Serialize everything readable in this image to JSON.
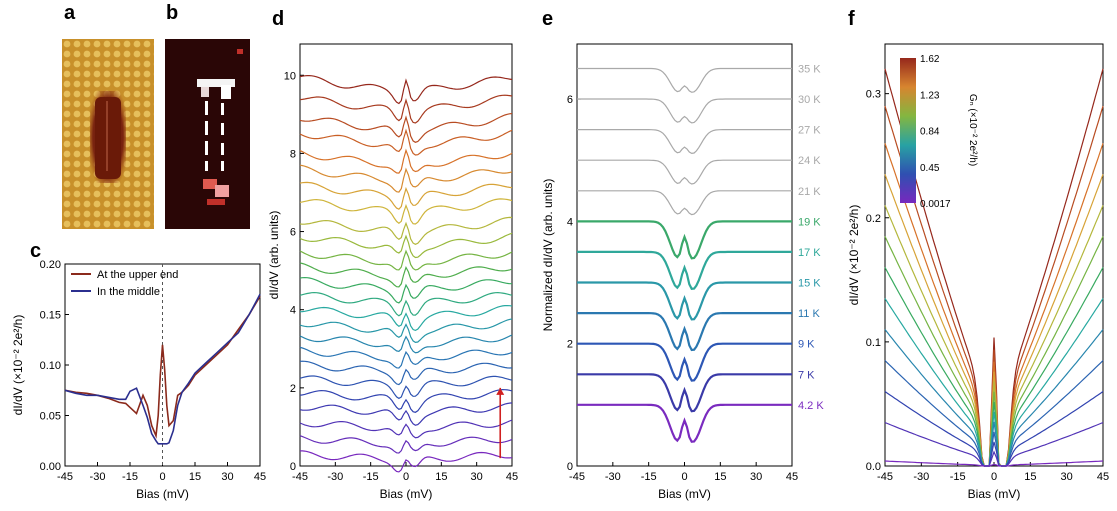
{
  "panel_letters": {
    "a": "a",
    "b": "b",
    "c": "c",
    "d": "d",
    "e": "e",
    "f": "f"
  },
  "colors": {
    "brown": "#8b2a1c",
    "navy": "#2b2f8f",
    "grey": "#a9a9a9",
    "afm_gold": "#c8902a",
    "afm_dark": "#6a1a08",
    "map_dark": "#2a0606"
  },
  "chart_data": [
    {
      "id": "c",
      "type": "line",
      "xlabel": "Bias (mV)",
      "ylabel": "dI/dV (×10⁻² 2e²/h)",
      "xlim": [
        -45,
        45
      ],
      "ylim": [
        0,
        0.2
      ],
      "xticks": [
        -45,
        -30,
        -15,
        0,
        15,
        30,
        45
      ],
      "xtick_labels": [
        "-45",
        "-30",
        "-15",
        "0",
        "15",
        "30",
        "45"
      ],
      "yticks": [
        0,
        0.05,
        0.1,
        0.15,
        0.2
      ],
      "ytick_labels": [
        "0.00",
        "0.05",
        "0.10",
        "0.15",
        "0.20"
      ],
      "legend_position": "top-left",
      "vline": 0,
      "series": [
        {
          "name": "At the upper end",
          "color": "#8b2a1c",
          "x": [
            -45,
            -40,
            -35,
            -30,
            -25,
            -20,
            -17,
            -15,
            -12,
            -9,
            -7,
            -5,
            -3,
            -2,
            -1,
            0,
            1,
            2,
            3,
            5,
            7,
            9,
            12,
            15,
            20,
            25,
            30,
            35,
            40,
            45
          ],
          "y": [
            0.075,
            0.073,
            0.072,
            0.07,
            0.067,
            0.063,
            0.062,
            0.058,
            0.052,
            0.07,
            0.06,
            0.04,
            0.03,
            0.05,
            0.09,
            0.12,
            0.095,
            0.06,
            0.04,
            0.045,
            0.07,
            0.073,
            0.08,
            0.09,
            0.1,
            0.11,
            0.12,
            0.135,
            0.15,
            0.168
          ]
        },
        {
          "name": "In the middle",
          "color": "#2b2f8f",
          "x": [
            -45,
            -40,
            -35,
            -30,
            -25,
            -20,
            -17,
            -15,
            -12,
            -9,
            -7,
            -5,
            -3,
            -2,
            -1,
            0,
            1,
            2,
            3,
            5,
            7,
            9,
            12,
            15,
            20,
            25,
            30,
            35,
            40,
            45
          ],
          "y": [
            0.075,
            0.072,
            0.07,
            0.07,
            0.068,
            0.066,
            0.066,
            0.074,
            0.077,
            0.06,
            0.048,
            0.032,
            0.025,
            0.022,
            0.022,
            0.022,
            0.022,
            0.022,
            0.023,
            0.035,
            0.06,
            0.073,
            0.082,
            0.092,
            0.102,
            0.112,
            0.122,
            0.132,
            0.15,
            0.17
          ]
        }
      ]
    },
    {
      "id": "d",
      "type": "line",
      "xlabel": "Bias (mV)",
      "ylabel": "dI/dV (arb. units)",
      "xlim": [
        -45,
        45
      ],
      "ylim": [
        0,
        10.8
      ],
      "xticks": [
        -45,
        -30,
        -15,
        0,
        15,
        30,
        45
      ],
      "xtick_labels": [
        "-45",
        "-30",
        "-15",
        "0",
        "15",
        "30",
        "45"
      ],
      "yticks": [
        0,
        2,
        4,
        6,
        8,
        10
      ],
      "ytick_labels": [
        "0",
        "2",
        "4",
        "6",
        "8",
        "10"
      ],
      "arrow_x": 40,
      "arrow_y": [
        0.2,
        2.0
      ],
      "stacked_offsets": [
        0.15,
        0.55,
        0.95,
        1.35,
        1.7,
        2.05,
        2.4,
        2.75,
        3.1,
        3.45,
        3.8,
        4.15,
        4.5,
        4.85,
        5.2,
        5.6,
        6.0,
        6.5,
        6.9,
        7.3,
        7.7,
        8.2,
        8.6,
        9.1,
        9.6
      ]
    },
    {
      "id": "e",
      "type": "line",
      "xlabel": "Bias (mV)",
      "ylabel": "Normalized dI/dV (arb. units)",
      "xlim": [
        -45,
        45
      ],
      "ylim": [
        0,
        6.9
      ],
      "xticks": [
        -45,
        -30,
        -15,
        0,
        15,
        30,
        45
      ],
      "xtick_labels": [
        "-45",
        "-30",
        "-15",
        "0",
        "15",
        "30",
        "45"
      ],
      "yticks": [
        0,
        2,
        4,
        6
      ],
      "ytick_labels": [
        "0",
        "2",
        "4",
        "6"
      ],
      "series": [
        {
          "name": "4.2 K",
          "offset": 1.0,
          "color": "#7a2bbf"
        },
        {
          "name": "7 K",
          "offset": 1.5,
          "color": "#3a3aa8"
        },
        {
          "name": "9 K",
          "offset": 2.0,
          "color": "#2d57b5"
        },
        {
          "name": "11 K",
          "offset": 2.5,
          "color": "#2a78b0"
        },
        {
          "name": "15 K",
          "offset": 3.0,
          "color": "#2a98a8"
        },
        {
          "name": "17 K",
          "offset": 3.5,
          "color": "#2fa89a"
        },
        {
          "name": "19 K",
          "offset": 4.0,
          "color": "#3aa86a"
        },
        {
          "name": "21 K",
          "offset": 4.5,
          "color": "#a9a9a9"
        },
        {
          "name": "24 K",
          "offset": 5.0,
          "color": "#a9a9a9"
        },
        {
          "name": "27 K",
          "offset": 5.5,
          "color": "#a9a9a9"
        },
        {
          "name": "30 K",
          "offset": 6.0,
          "color": "#a9a9a9"
        },
        {
          "name": "35 K",
          "offset": 6.5,
          "color": "#a9a9a9"
        }
      ]
    },
    {
      "id": "f",
      "type": "line",
      "xlabel": "Bias (mV)",
      "ylabel": "dI/dV (×10⁻² 2e²/h)",
      "xlim": [
        -45,
        45
      ],
      "ylim": [
        0,
        0.34
      ],
      "xticks": [
        -45,
        -30,
        -15,
        0,
        15,
        30,
        45
      ],
      "xtick_labels": [
        "-45",
        "-30",
        "-15",
        "0",
        "15",
        "30",
        "45"
      ],
      "yticks": [
        0,
        0.1,
        0.2,
        0.3
      ],
      "ytick_labels": [
        "0.0",
        "0.1",
        "0.2",
        "0.3"
      ],
      "colorbar_label": "Gₙ (×10⁻² 2e²/h)",
      "colorbar_ticks": [
        "1.62",
        "1.23",
        "0.84",
        "0.45",
        "0.0017"
      ],
      "series_gn": [
        1.62,
        1.45,
        1.3,
        1.15,
        1.0,
        0.85,
        0.7,
        0.55,
        0.42,
        0.3,
        0.2,
        0.1,
        0.0017
      ],
      "series_scale": [
        0.32,
        0.29,
        0.26,
        0.235,
        0.21,
        0.185,
        0.16,
        0.135,
        0.11,
        0.085,
        0.06,
        0.035,
        0.004
      ]
    }
  ]
}
